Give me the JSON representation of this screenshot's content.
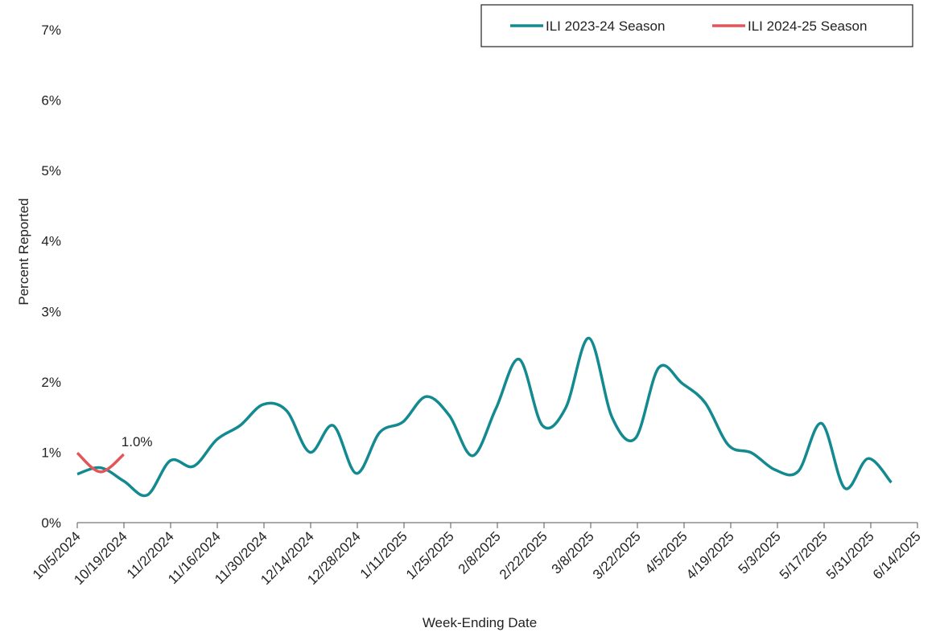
{
  "chart_data": {
    "type": "line",
    "title": "",
    "xlabel": "Week-Ending Date",
    "ylabel": "Percent Reported",
    "ylim": [
      0,
      7
    ],
    "y_ticks": [
      "0%",
      "1%",
      "2%",
      "3%",
      "4%",
      "5%",
      "6%",
      "7%"
    ],
    "x_ticks": [
      "10/5/2024",
      "10/19/2024",
      "11/2/2024",
      "11/16/2024",
      "11/30/2024",
      "12/14/2024",
      "12/28/2024",
      "1/11/2025",
      "1/25/2025",
      "2/8/2025",
      "2/22/2025",
      "3/8/2025",
      "3/22/2025",
      "4/5/2025",
      "4/19/2025",
      "5/3/2025",
      "5/17/2025",
      "5/31/2025",
      "6/14/2025"
    ],
    "grid": false,
    "legend_position": "top-right",
    "series": [
      {
        "name": "ILI 2023-24 Season",
        "color": "#138a8f",
        "values": [
          0.69,
          0.78,
          0.59,
          0.39,
          0.88,
          0.8,
          1.18,
          1.38,
          1.68,
          1.59,
          1.0,
          1.38,
          0.7,
          1.28,
          1.43,
          1.79,
          1.52,
          0.95,
          1.62,
          2.32,
          1.38,
          1.63,
          2.62,
          1.49,
          1.2,
          2.2,
          1.98,
          1.7,
          1.1,
          0.99,
          0.75,
          0.73,
          1.41,
          0.49,
          0.91,
          0.57
        ]
      },
      {
        "name": "ILI 2024-25 Season",
        "color": "#e15759",
        "values": [
          0.99,
          0.72,
          0.97
        ]
      }
    ],
    "annotations": [
      {
        "series": 1,
        "index": 2,
        "text": "1.0%"
      }
    ]
  }
}
